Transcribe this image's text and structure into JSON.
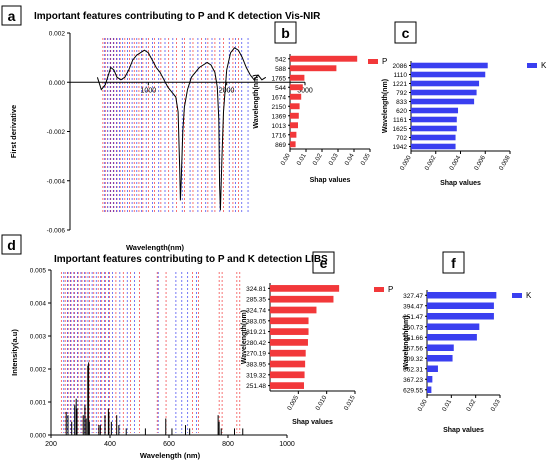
{
  "figure": {
    "panel_labels": [
      "a",
      "b",
      "c",
      "d",
      "e",
      "f"
    ],
    "title_top": "Important features contributing to P and K detection Vis-NIR",
    "title_bottom": "Important features contributing to P and K detection LIBS"
  },
  "colors": {
    "p_series": "#f2383a",
    "k_series": "#3a3ff0",
    "spectrum": "#000000"
  },
  "chart_data": [
    {
      "id": "a",
      "type": "line",
      "xlabel": "Wavelength(nm)",
      "ylabel": "First derivative",
      "xlim": [
        0,
        3000
      ],
      "ylim": [
        -0.006,
        0.002
      ],
      "xticks": [
        1000,
        2000,
        3000
      ],
      "xtick_labels": [
        "1000",
        "2000",
        "3000"
      ],
      "yticks": [
        0.002,
        0.0,
        -0.002,
        -0.004,
        -0.006
      ],
      "ytick_labels": [
        "0.002",
        "0.000",
        "-0.002",
        "-0.004",
        "-0.006"
      ],
      "series": [
        {
          "x": [
            350,
            400,
            450,
            500,
            520,
            560,
            600,
            650,
            700,
            750,
            800,
            850,
            900,
            950,
            1000,
            1050,
            1100,
            1150,
            1200,
            1250,
            1300,
            1350,
            1380,
            1400,
            1410,
            1420,
            1440,
            1460,
            1500,
            1550,
            1600,
            1650,
            1700,
            1750,
            1800,
            1850,
            1880,
            1900,
            1910,
            1920,
            1940,
            1960,
            2000,
            2050,
            2100,
            2150,
            2200,
            2250,
            2300,
            2350,
            2400,
            2450,
            2500
          ],
          "y": [
            0.0002,
            -0.0003,
            -0.0001,
            0.0004,
            0.0006,
            0.0005,
            0.0002,
            0.0001,
            0.0002,
            0.0005,
            0.0009,
            0.0011,
            0.0012,
            0.0013,
            0.0012,
            0.0009,
            0.0006,
            0.0004,
            0.0001,
            -0.0002,
            -0.0004,
            -0.0006,
            -0.0012,
            -0.0035,
            -0.0048,
            -0.004,
            -0.002,
            -0.001,
            -0.0003,
            0.0002,
            0.0004,
            0.0006,
            0.0007,
            0.0008,
            0.0007,
            0.0004,
            -0.0002,
            -0.0015,
            -0.0042,
            -0.0052,
            -0.003,
            -0.0012,
            0.0005,
            0.0012,
            0.0014,
            0.0013,
            0.001,
            0.0006,
            0.0003,
            0.0001,
            0.0003,
            0.0001,
            0.0002
          ]
        }
      ],
      "marker_lines_P": [
        420,
        450,
        480,
        520,
        560,
        600,
        640,
        700,
        760,
        820,
        880,
        930,
        1000,
        1080,
        1160,
        1260,
        1360,
        1460,
        1570,
        1680,
        1760,
        1850,
        1960,
        2080,
        2150
      ],
      "marker_lines_K": [
        430,
        470,
        500,
        540,
        580,
        620,
        660,
        720,
        780,
        840,
        900,
        960,
        1040,
        1120,
        1200,
        1300,
        1420,
        1520,
        1620,
        1720,
        1800,
        1900,
        2020,
        2100,
        2180,
        2260
      ]
    },
    {
      "id": "b",
      "type": "bar",
      "orientation": "horizontal",
      "xlabel": "Shap values",
      "ylabel": "Wavelength(nm)",
      "categories": [
        "542",
        "588",
        "1765",
        "544",
        "1674",
        "2150",
        "1369",
        "1013",
        "1716",
        "869"
      ],
      "series": [
        {
          "name": "P",
          "values": [
            0.042,
            0.029,
            0.009,
            0.008,
            0.007,
            0.006,
            0.0055,
            0.005,
            0.004,
            0.0035
          ]
        }
      ],
      "xlim": [
        0,
        0.05
      ],
      "xtick_labels": [
        "0.00",
        "0.01",
        "0.02",
        "0.03",
        "0.04",
        "0.05"
      ]
    },
    {
      "id": "c",
      "type": "bar",
      "orientation": "horizontal",
      "xlabel": "Shap values",
      "ylabel": "Wavelength(nm)",
      "categories": [
        "2086",
        "1110",
        "1221",
        "792",
        "833",
        "620",
        "1161",
        "1625",
        "702",
        "1942"
      ],
      "series": [
        {
          "name": "K",
          "values": [
            0.0062,
            0.006,
            0.0055,
            0.0053,
            0.0051,
            0.0038,
            0.0037,
            0.0037,
            0.0036,
            0.0036
          ]
        }
      ],
      "xlim": [
        0,
        0.008
      ],
      "xtick_labels": [
        "0.000",
        "0.002",
        "0.004",
        "0.006",
        "0.008"
      ]
    },
    {
      "id": "d",
      "type": "line",
      "xlabel": "Wavelength (nm)",
      "ylabel": "Intensity(a.u)",
      "xlim": [
        200,
        1000
      ],
      "ylim": [
        0,
        0.005
      ],
      "xtick_labels": [
        "200",
        "400",
        "600",
        "800",
        "1000"
      ],
      "ytick_labels": [
        "0.000",
        "0.001",
        "0.002",
        "0.003",
        "0.004",
        "0.005"
      ],
      "series": [
        {
          "x": [
            251.5,
            257.6,
            270.2,
            280.4,
            285.4,
            288.2,
            309.3,
            315,
            319.3,
            324.7,
            327.5,
            330,
            362.3,
            367.2,
            383,
            394.5,
            396.2,
            404.6,
            422.7,
            430,
            455,
            520,
            589,
            610,
            656,
            670,
            766.5,
            769.9,
            777,
            822,
            850
          ],
          "y": [
            0.0007,
            0.0006,
            0.0004,
            0.0009,
            0.0011,
            0.0008,
            0.0006,
            0.0009,
            0.0005,
            0.0021,
            0.0022,
            0.0004,
            0.0003,
            0.0003,
            0.0006,
            0.0008,
            0.0007,
            0.0004,
            0.0006,
            0.0003,
            0.0002,
            0.0002,
            0.0005,
            0.0002,
            0.0003,
            0.0002,
            0.0006,
            0.0004,
            0.0002,
            0.0002,
            0.0002
          ]
        }
      ],
      "marker_lines_P": [
        235,
        248,
        258,
        268,
        280,
        292,
        305,
        318,
        330,
        345,
        360,
        372,
        385,
        398,
        420,
        445,
        470,
        500,
        560,
        590,
        680,
        700,
        770,
        780,
        830,
        840
      ],
      "marker_lines_K": [
        240,
        252,
        262,
        274,
        286,
        298,
        310,
        322,
        336,
        350,
        365,
        378,
        392,
        405,
        430,
        455,
        480,
        560,
        620,
        640,
        660,
        690
      ]
    },
    {
      "id": "e",
      "type": "bar",
      "orientation": "horizontal",
      "xlabel": "Shap values",
      "ylabel": "Wavelength(nm)",
      "categories": [
        "324.81",
        "285.35",
        "324.74",
        "383.05",
        "819.21",
        "280.42",
        "270.19",
        "383.95",
        "319.32",
        "251.48"
      ],
      "series": [
        {
          "name": "P",
          "values": [
            0.0122,
            0.0112,
            0.0082,
            0.0068,
            0.0068,
            0.0067,
            0.0063,
            0.0062,
            0.0061,
            0.006
          ]
        }
      ],
      "xlim": [
        0,
        0.015
      ],
      "xtick_labels": [
        "0.005",
        "0.010",
        "0.015"
      ]
    },
    {
      "id": "f",
      "type": "bar",
      "orientation": "horizontal",
      "xlabel": "Shap values",
      "ylabel": "Wavelength(nm)",
      "categories": [
        "327.47",
        "394.47",
        "251.47",
        "250.73",
        "251.66",
        "257.56",
        "309.32",
        "362.31",
        "367.23",
        "629.55"
      ],
      "series": [
        {
          "name": "K",
          "values": [
            0.0285,
            0.0275,
            0.0275,
            0.0215,
            0.0205,
            0.011,
            0.0105,
            0.0045,
            0.0022,
            0.0018
          ]
        }
      ],
      "xlim": [
        0,
        0.03
      ],
      "xtick_labels": [
        "0.00",
        "0.01",
        "0.02",
        "0.03"
      ]
    }
  ]
}
